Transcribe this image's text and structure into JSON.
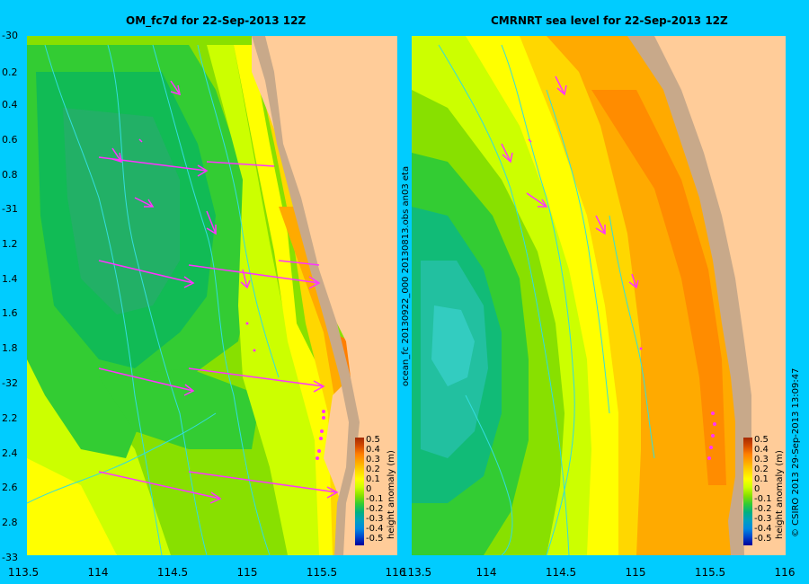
{
  "panels": {
    "left": {
      "title": "OM_fc7d for 22-Sep-2013 12Z"
    },
    "right": {
      "title": "CMRNRT sea level  for 22-Sep-2013 12Z"
    }
  },
  "y_axis_labels": [
    "-30",
    "0.2",
    "0.4",
    "0.6",
    "0.8",
    "-31",
    "1.2",
    "1.4",
    "1.6",
    "1.8",
    "-32",
    "2.2",
    "2.4",
    "2.6",
    "2.8",
    "-33"
  ],
  "x_axis_left": [
    "113.5",
    "114",
    "114.5",
    "115",
    "115.5",
    "116"
  ],
  "x_axis_right": [
    "113.5",
    "114",
    "114.5",
    "115",
    "115.5",
    "116"
  ],
  "colorbar": {
    "title": "height anomaly (m)",
    "ticks": [
      "0.5",
      "0.4",
      "0.3",
      "0.2",
      "0.1",
      "0",
      "-0.1",
      "-0.2",
      "-0.3",
      "-0.4",
      "-0.5"
    ],
    "colors": [
      "#a52a00",
      "#d44a00",
      "#ff7f00",
      "#ffaa00",
      "#ffd700",
      "#ffff00",
      "#ccff00",
      "#88e000",
      "#33cc33",
      "#00b080",
      "#00a0c0",
      "#0088e0",
      "#0044cc",
      "#000099"
    ]
  },
  "side_text": "ocean_fc  20130922_000      20130813.obs  an03  eta",
  "credit": "© CSIRO 2013   29-Sep-2013 13:09:47",
  "colors": {
    "background": "#00ccff",
    "land": "#ffcc99",
    "shelf": "#c8a98a",
    "vectors": "#ff33ff",
    "contours": "#33dddd"
  }
}
